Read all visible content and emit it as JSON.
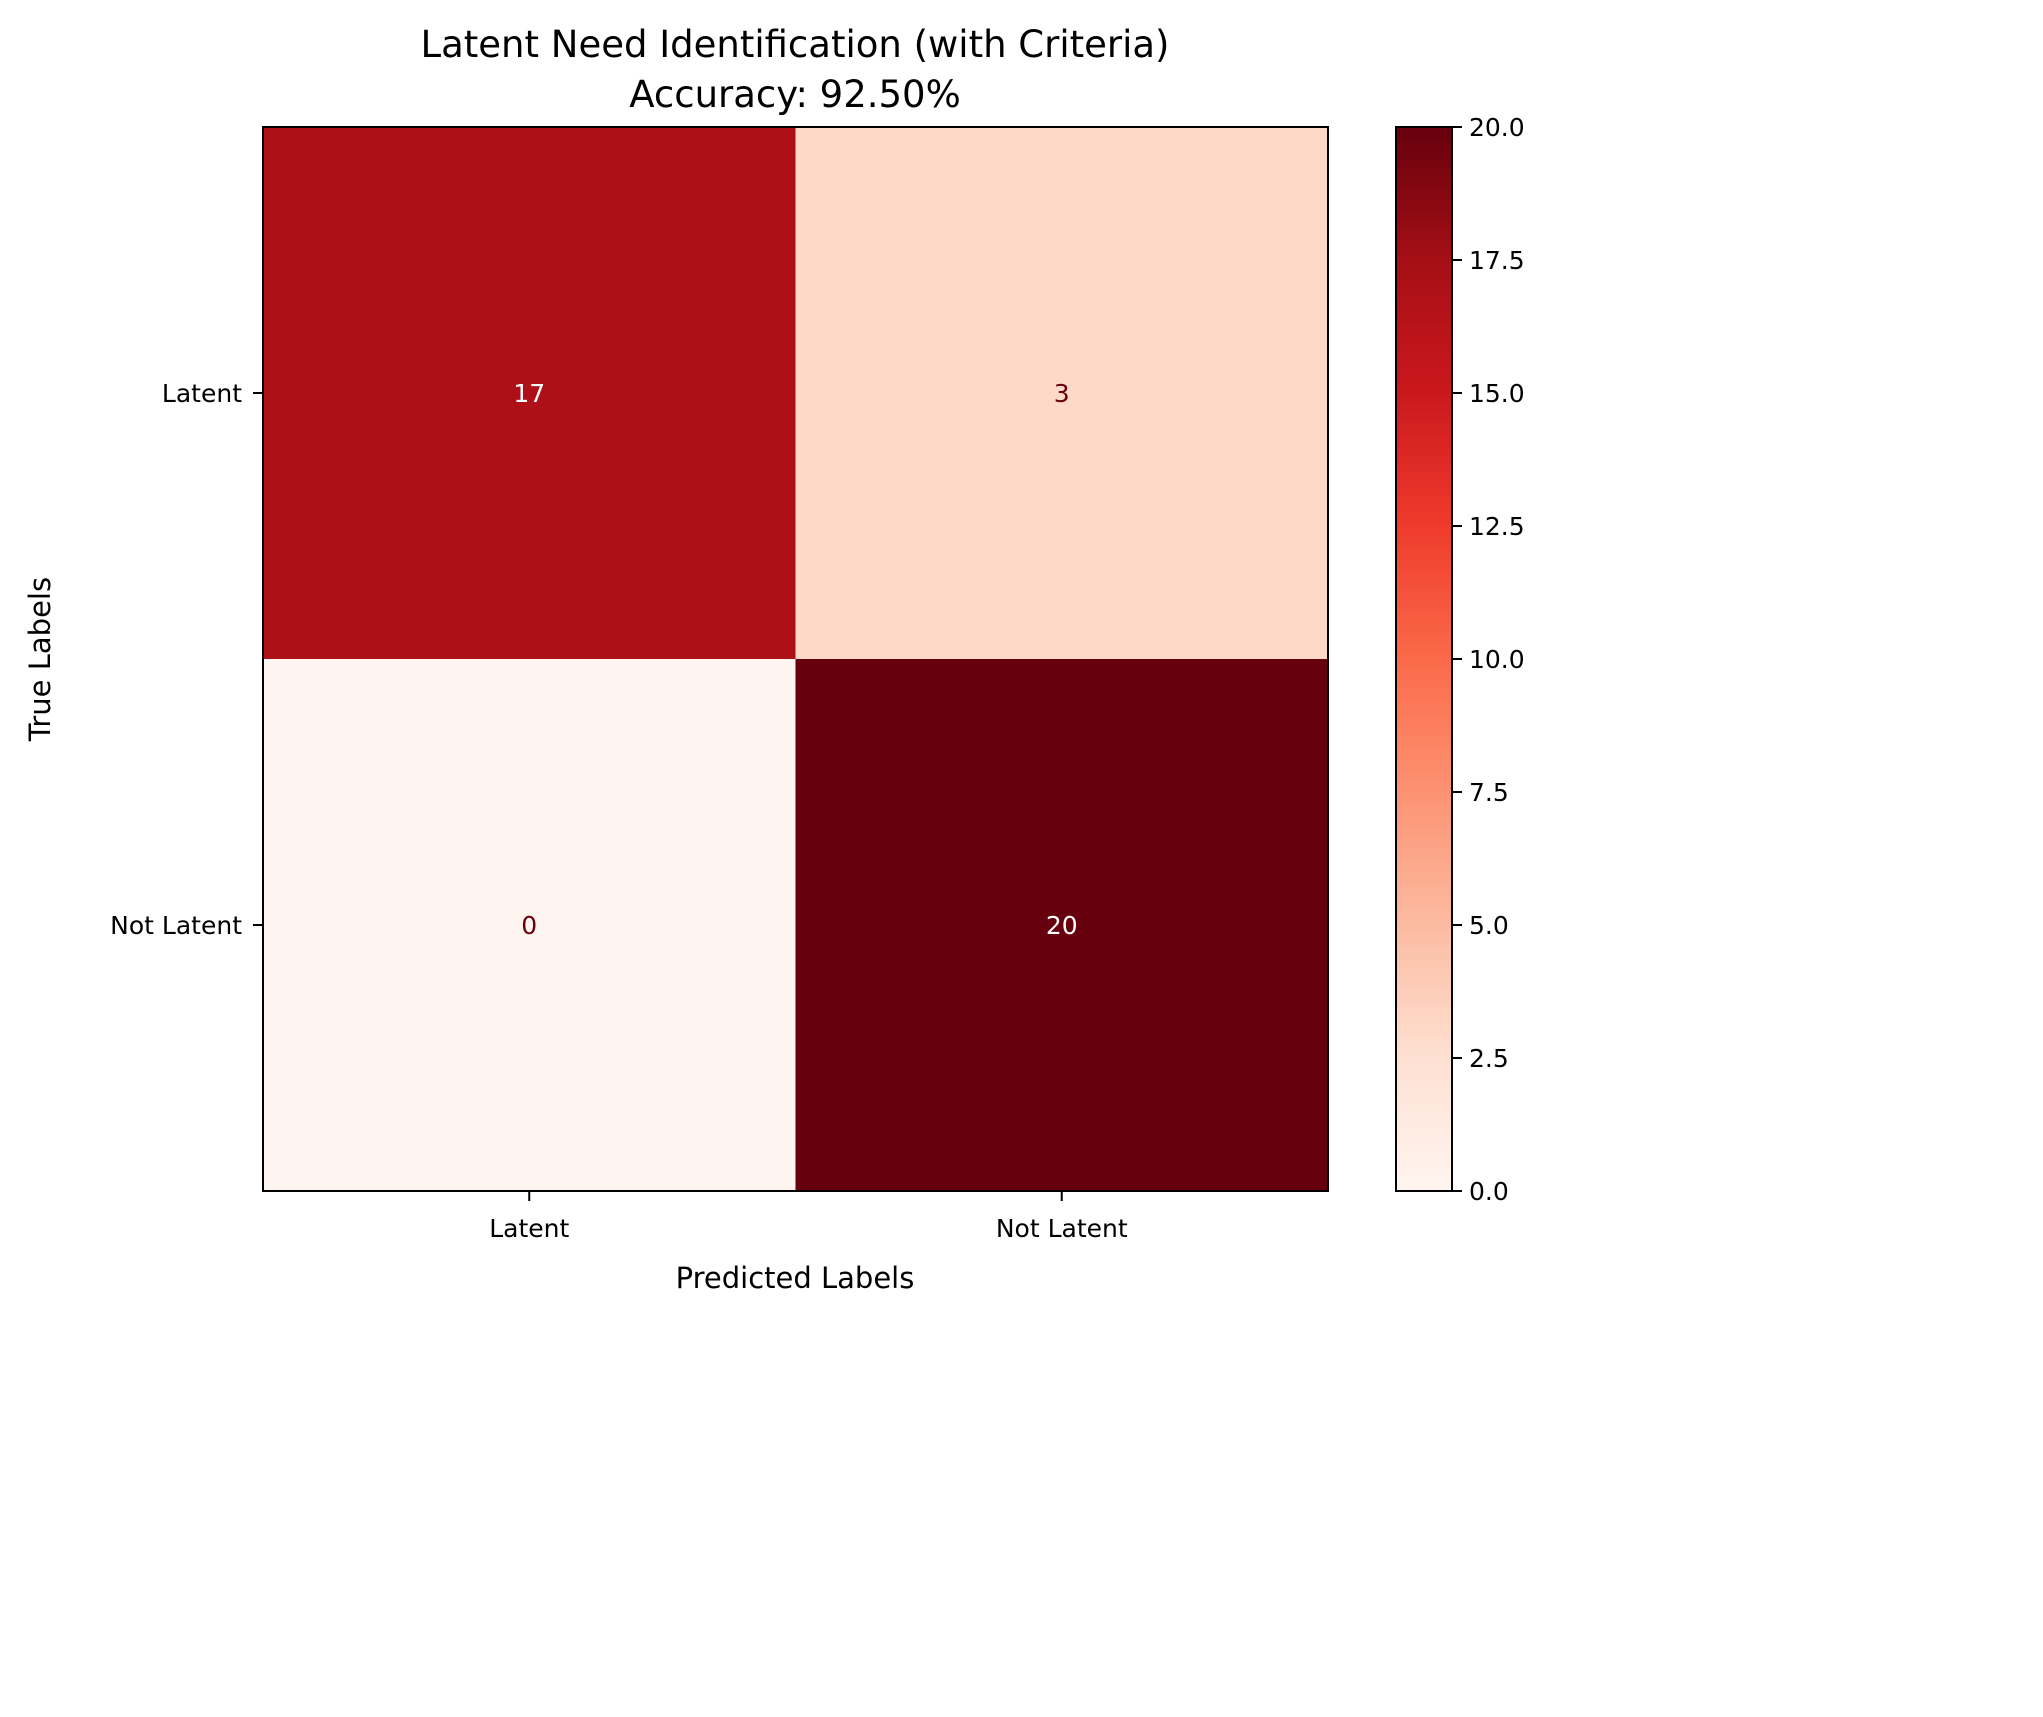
{
  "chart_data": {
    "type": "heatmap",
    "title": "Latent Need Identification (with Criteria)",
    "subtitle": "Accuracy: 92.50%",
    "xlabel": "Predicted Labels",
    "ylabel": "True Labels",
    "x_categories": [
      "Latent",
      "Not Latent"
    ],
    "y_categories": [
      "Latent",
      "Not Latent"
    ],
    "matrix": [
      [
        17,
        3
      ],
      [
        0,
        20
      ]
    ],
    "cell_labels": [
      [
        "17",
        "3"
      ],
      [
        "0",
        "20"
      ]
    ],
    "colormap": "Reds",
    "colorbar": {
      "range": [
        0,
        20
      ],
      "ticks": [
        0.0,
        2.5,
        5.0,
        7.5,
        10.0,
        12.5,
        15.0,
        17.5,
        20.0
      ],
      "tick_labels": [
        "0.0",
        "2.5",
        "5.0",
        "7.5",
        "10.0",
        "12.5",
        "15.0",
        "17.5",
        "20.0"
      ]
    },
    "text_colors": {
      "light_cell": "#67000d",
      "dark_cell": "#ffffff"
    },
    "grid": false
  }
}
